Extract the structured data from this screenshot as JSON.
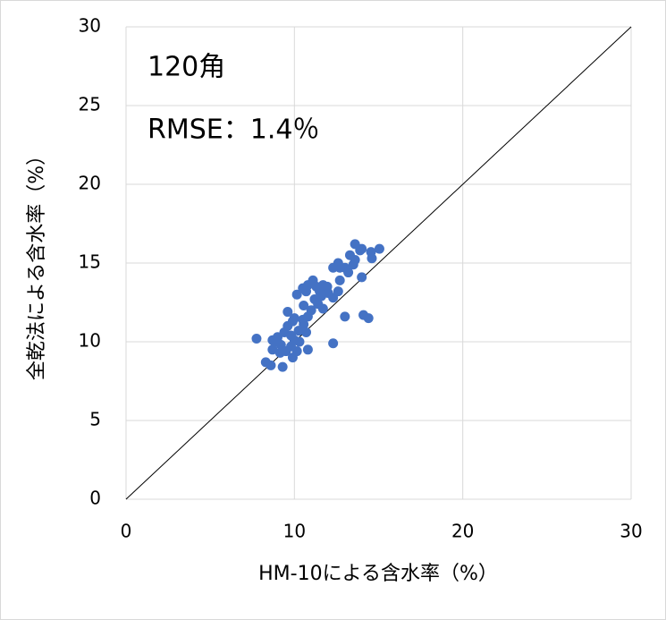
{
  "chart_data": {
    "type": "scatter",
    "annotations": [
      "120角",
      "RMSE：1.4％"
    ],
    "xlabel": "HM-10による含水率（%）",
    "ylabel": "全乾法による含水率（%）",
    "xlim": [
      0,
      30
    ],
    "ylim": [
      0,
      30
    ],
    "xticks": [
      0,
      10,
      20,
      30
    ],
    "yticks": [
      0,
      5,
      10,
      15,
      20,
      25,
      30
    ],
    "grid": true,
    "color": "#4472c4",
    "identity_line": true,
    "x": [
      7.75,
      8.3,
      8.6,
      9.3,
      8.7,
      9.0,
      9.2,
      9.5,
      9.8,
      9.4,
      9.6,
      9.9,
      9.6,
      10.0,
      10.25,
      10.5,
      10.7,
      10.8,
      10.15,
      10.5,
      10.8,
      11.1,
      10.55,
      11.0,
      11.2,
      11.5,
      11.7,
      12.0,
      12.3,
      12.6,
      12.7,
      12.3,
      13.0,
      12.7,
      12.6,
      13.0,
      13.3,
      13.6,
      13.9,
      13.6,
      14.0,
      14.0,
      14.1,
      14.4,
      14.55,
      15.05,
      14.6,
      11.7,
      11.4,
      9.9,
      9.8,
      9.15,
      10.0,
      10.3,
      10.55,
      10.8,
      10.15,
      9.0,
      8.7,
      13.5,
      13.2,
      12.3,
      11.95,
      11.3,
      10.7,
      11.6
    ],
    "y": [
      10.2,
      8.7,
      8.5,
      8.4,
      10.1,
      10.3,
      9.8,
      9.4,
      9.7,
      10.6,
      11.0,
      11.3,
      11.9,
      10.1,
      10.7,
      11.4,
      10.6,
      9.5,
      13.0,
      13.4,
      13.6,
      13.9,
      12.3,
      12.0,
      12.7,
      13.2,
      13.6,
      13.1,
      12.8,
      13.2,
      13.9,
      9.9,
      11.6,
      14.7,
      15.0,
      14.7,
      15.5,
      15.2,
      15.8,
      16.2,
      15.9,
      14.1,
      11.7,
      11.5,
      15.7,
      15.9,
      15.3,
      12.1,
      12.4,
      9.0,
      10.4,
      9.3,
      11.5,
      10.0,
      11.1,
      11.6,
      9.4,
      10.0,
      9.5,
      14.9,
      14.4,
      14.7,
      13.5,
      13.5,
      13.2,
      12.9
    ]
  }
}
